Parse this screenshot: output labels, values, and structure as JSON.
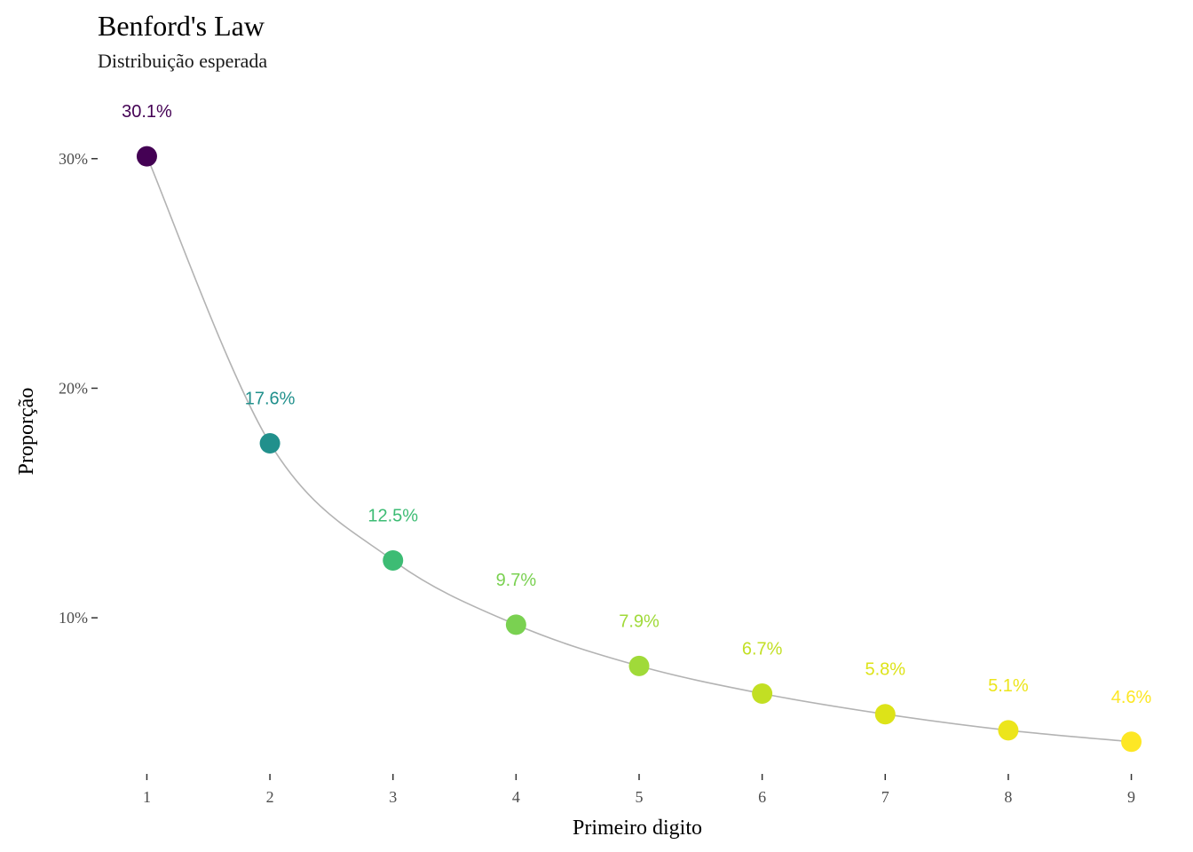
{
  "chart_data": {
    "type": "line",
    "title": "Benford's Law",
    "subtitle": "Distribuição esperada",
    "xlabel": "Primeiro digito",
    "ylabel": "Proporção",
    "x": [
      1,
      2,
      3,
      4,
      5,
      6,
      7,
      8,
      9
    ],
    "values": [
      30.1,
      17.6,
      12.5,
      9.7,
      7.9,
      6.7,
      5.8,
      5.1,
      4.6
    ],
    "data_labels": [
      "30.1%",
      "17.6%",
      "12.5%",
      "9.7%",
      "7.9%",
      "6.7%",
      "5.8%",
      "5.1%",
      "4.6%"
    ],
    "x_ticks": [
      "1",
      "2",
      "3",
      "4",
      "5",
      "6",
      "7",
      "8",
      "9"
    ],
    "y_ticks": [
      {
        "value": 10,
        "label": "10%"
      },
      {
        "value": 20,
        "label": "20%"
      },
      {
        "value": 30,
        "label": "30%"
      }
    ],
    "xlim": [
      0.6,
      9.4
    ],
    "ylim": [
      3.2,
      33.2
    ],
    "colors": [
      "#440154",
      "#21908C",
      "#3DBC74",
      "#7AD151",
      "#A0DA39",
      "#C2DF23",
      "#DDE318",
      "#ECE51B",
      "#FDE725"
    ],
    "line_color": "#b3b3b3",
    "grid": false,
    "legend": "none"
  }
}
